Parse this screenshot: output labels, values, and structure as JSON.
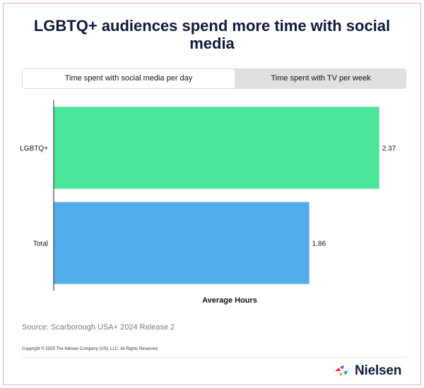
{
  "title": "LGBTQ+ audiences spend more time with social media",
  "tabs": [
    {
      "label": "Time spent with social media per day",
      "active": true
    },
    {
      "label": "Time spent with TV per week",
      "active": false
    }
  ],
  "chart_data": {
    "type": "bar",
    "orientation": "horizontal",
    "categories": [
      "LGBTQ+",
      "Total"
    ],
    "values": [
      2.37,
      1.86
    ],
    "value_labels": [
      "2.37",
      "1.86"
    ],
    "colors": [
      "#4be599",
      "#52adec"
    ],
    "xlabel": "Average Hours",
    "xlim": [
      0,
      2.5
    ],
    "grid": false,
    "legend": "none"
  },
  "source": "Source: Scarborough USA+ 2024 Release 2",
  "copyright": "Copyright © 2025 The Nielsen Company (US), LLC. All Rights Reserved.",
  "logo": {
    "text": "Nielsen",
    "icon": "nielsen-logo-icon",
    "colors": [
      "#e6195f",
      "#6a4cff",
      "#1aa6e8",
      "#f7a21b"
    ]
  }
}
